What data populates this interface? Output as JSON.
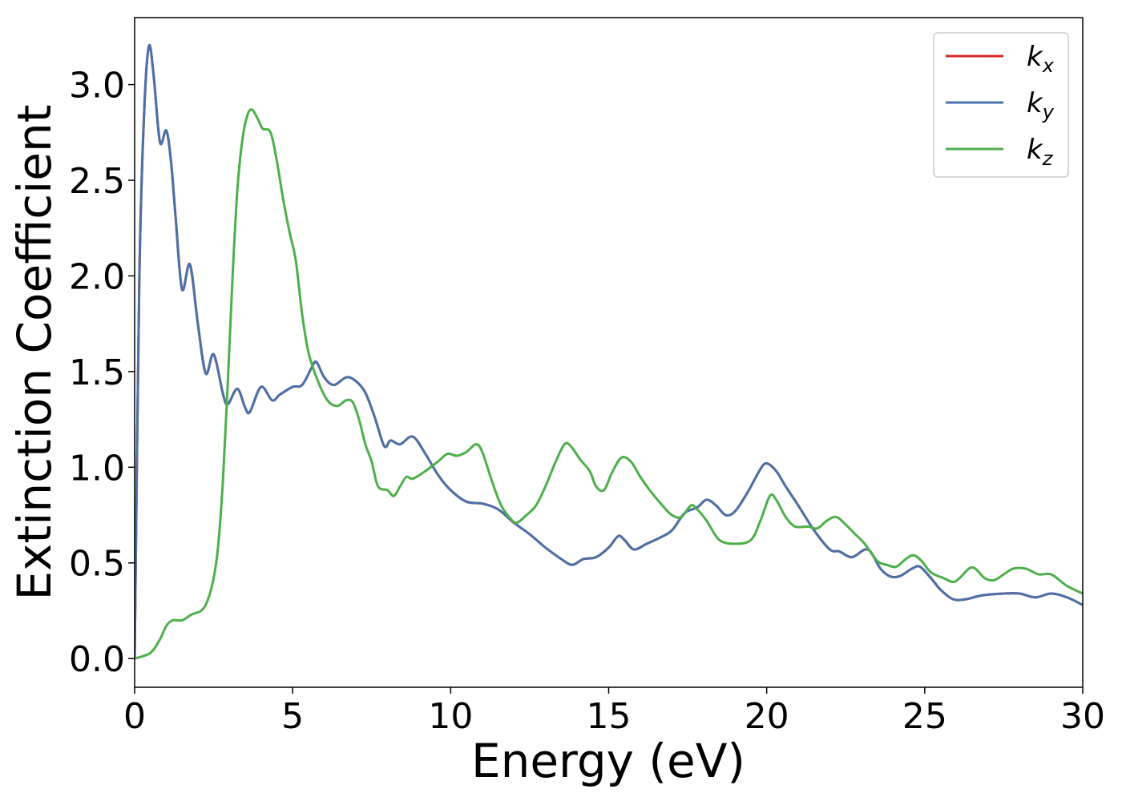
{
  "chart_data": {
    "type": "line",
    "xlabel": "Energy (eV)",
    "ylabel": "Extinction Coefficient",
    "xlim": [
      0,
      30
    ],
    "ylim": [
      -0.15,
      3.35
    ],
    "x_ticks": [
      "0",
      "5",
      "10",
      "15",
      "20",
      "25",
      "30"
    ],
    "y_ticks": [
      "0.0",
      "0.5",
      "1.0",
      "1.5",
      "2.0",
      "2.5",
      "3.0"
    ],
    "grid": false,
    "legend_position": "top-right",
    "series": [
      {
        "name": "k_x",
        "legend_main": "k",
        "legend_sub": "x",
        "color": "#d62728",
        "points": [
          [
            0,
            0
          ],
          [
            0.15,
            2.0
          ],
          [
            0.3,
            2.85
          ],
          [
            0.45,
            3.2
          ],
          [
            0.6,
            3.05
          ],
          [
            0.8,
            2.7
          ],
          [
            1.0,
            2.76
          ],
          [
            1.15,
            2.6
          ],
          [
            1.3,
            2.3
          ],
          [
            1.5,
            1.93
          ],
          [
            1.75,
            2.06
          ],
          [
            2.0,
            1.75
          ],
          [
            2.25,
            1.49
          ],
          [
            2.5,
            1.59
          ],
          [
            2.8,
            1.38
          ],
          [
            2.95,
            1.33
          ],
          [
            3.25,
            1.41
          ],
          [
            3.5,
            1.31
          ],
          [
            3.65,
            1.29
          ],
          [
            4.0,
            1.42
          ],
          [
            4.35,
            1.35
          ],
          [
            4.6,
            1.38
          ],
          [
            5.0,
            1.42
          ],
          [
            5.3,
            1.43
          ],
          [
            5.6,
            1.52
          ],
          [
            5.75,
            1.55
          ],
          [
            6.0,
            1.47
          ],
          [
            6.3,
            1.43
          ],
          [
            6.7,
            1.47
          ],
          [
            7.0,
            1.45
          ],
          [
            7.3,
            1.39
          ],
          [
            7.6,
            1.26
          ],
          [
            7.9,
            1.11
          ],
          [
            8.1,
            1.14
          ],
          [
            8.4,
            1.12
          ],
          [
            8.8,
            1.16
          ],
          [
            9.2,
            1.07
          ],
          [
            9.6,
            0.96
          ],
          [
            10.0,
            0.88
          ],
          [
            10.5,
            0.82
          ],
          [
            11.0,
            0.81
          ],
          [
            11.5,
            0.78
          ],
          [
            12.0,
            0.71
          ],
          [
            12.5,
            0.65
          ],
          [
            13.0,
            0.58
          ],
          [
            13.5,
            0.52
          ],
          [
            13.85,
            0.49
          ],
          [
            14.2,
            0.52
          ],
          [
            14.6,
            0.53
          ],
          [
            15.0,
            0.58
          ],
          [
            15.3,
            0.64
          ],
          [
            15.5,
            0.62
          ],
          [
            15.8,
            0.57
          ],
          [
            16.2,
            0.6
          ],
          [
            16.6,
            0.63
          ],
          [
            17.0,
            0.67
          ],
          [
            17.4,
            0.76
          ],
          [
            17.8,
            0.79
          ],
          [
            18.1,
            0.83
          ],
          [
            18.4,
            0.8
          ],
          [
            18.7,
            0.75
          ],
          [
            19.0,
            0.77
          ],
          [
            19.4,
            0.87
          ],
          [
            19.8,
            0.99
          ],
          [
            20.0,
            1.02
          ],
          [
            20.3,
            0.98
          ],
          [
            20.6,
            0.9
          ],
          [
            21.0,
            0.8
          ],
          [
            21.5,
            0.67
          ],
          [
            22.0,
            0.57
          ],
          [
            22.3,
            0.56
          ],
          [
            22.7,
            0.53
          ],
          [
            23.2,
            0.57
          ],
          [
            23.6,
            0.47
          ],
          [
            23.9,
            0.43
          ],
          [
            24.2,
            0.43
          ],
          [
            24.6,
            0.47
          ],
          [
            24.85,
            0.48
          ],
          [
            25.2,
            0.42
          ],
          [
            25.5,
            0.36
          ],
          [
            25.9,
            0.31
          ],
          [
            26.3,
            0.31
          ],
          [
            26.8,
            0.33
          ],
          [
            27.5,
            0.34
          ],
          [
            28.0,
            0.34
          ],
          [
            28.5,
            0.32
          ],
          [
            29.0,
            0.34
          ],
          [
            29.5,
            0.32
          ],
          [
            30.0,
            0.28
          ]
        ]
      },
      {
        "name": "k_y",
        "legend_main": "k",
        "legend_sub": "y",
        "color": "#4a72a8",
        "points": [
          [
            0,
            0
          ],
          [
            0.15,
            2.0
          ],
          [
            0.3,
            2.85
          ],
          [
            0.45,
            3.2
          ],
          [
            0.6,
            3.05
          ],
          [
            0.8,
            2.7
          ],
          [
            1.0,
            2.76
          ],
          [
            1.15,
            2.6
          ],
          [
            1.3,
            2.3
          ],
          [
            1.5,
            1.93
          ],
          [
            1.75,
            2.06
          ],
          [
            2.0,
            1.75
          ],
          [
            2.25,
            1.49
          ],
          [
            2.5,
            1.59
          ],
          [
            2.8,
            1.38
          ],
          [
            2.95,
            1.33
          ],
          [
            3.25,
            1.41
          ],
          [
            3.5,
            1.31
          ],
          [
            3.65,
            1.29
          ],
          [
            4.0,
            1.42
          ],
          [
            4.35,
            1.35
          ],
          [
            4.6,
            1.38
          ],
          [
            5.0,
            1.42
          ],
          [
            5.3,
            1.43
          ],
          [
            5.6,
            1.52
          ],
          [
            5.75,
            1.55
          ],
          [
            6.0,
            1.47
          ],
          [
            6.3,
            1.43
          ],
          [
            6.7,
            1.47
          ],
          [
            7.0,
            1.45
          ],
          [
            7.3,
            1.39
          ],
          [
            7.6,
            1.26
          ],
          [
            7.9,
            1.11
          ],
          [
            8.1,
            1.14
          ],
          [
            8.4,
            1.12
          ],
          [
            8.8,
            1.16
          ],
          [
            9.2,
            1.07
          ],
          [
            9.6,
            0.96
          ],
          [
            10.0,
            0.88
          ],
          [
            10.5,
            0.82
          ],
          [
            11.0,
            0.81
          ],
          [
            11.5,
            0.78
          ],
          [
            12.0,
            0.71
          ],
          [
            12.5,
            0.65
          ],
          [
            13.0,
            0.58
          ],
          [
            13.5,
            0.52
          ],
          [
            13.85,
            0.49
          ],
          [
            14.2,
            0.52
          ],
          [
            14.6,
            0.53
          ],
          [
            15.0,
            0.58
          ],
          [
            15.3,
            0.64
          ],
          [
            15.5,
            0.62
          ],
          [
            15.8,
            0.57
          ],
          [
            16.2,
            0.6
          ],
          [
            16.6,
            0.63
          ],
          [
            17.0,
            0.67
          ],
          [
            17.4,
            0.76
          ],
          [
            17.8,
            0.79
          ],
          [
            18.1,
            0.83
          ],
          [
            18.4,
            0.8
          ],
          [
            18.7,
            0.75
          ],
          [
            19.0,
            0.77
          ],
          [
            19.4,
            0.87
          ],
          [
            19.8,
            0.99
          ],
          [
            20.0,
            1.02
          ],
          [
            20.3,
            0.98
          ],
          [
            20.6,
            0.9
          ],
          [
            21.0,
            0.8
          ],
          [
            21.5,
            0.67
          ],
          [
            22.0,
            0.57
          ],
          [
            22.3,
            0.56
          ],
          [
            22.7,
            0.53
          ],
          [
            23.2,
            0.57
          ],
          [
            23.6,
            0.47
          ],
          [
            23.9,
            0.43
          ],
          [
            24.2,
            0.43
          ],
          [
            24.6,
            0.47
          ],
          [
            24.85,
            0.48
          ],
          [
            25.2,
            0.42
          ],
          [
            25.5,
            0.36
          ],
          [
            25.9,
            0.31
          ],
          [
            26.3,
            0.31
          ],
          [
            26.8,
            0.33
          ],
          [
            27.5,
            0.34
          ],
          [
            28.0,
            0.34
          ],
          [
            28.5,
            0.32
          ],
          [
            29.0,
            0.34
          ],
          [
            29.5,
            0.32
          ],
          [
            30.0,
            0.28
          ]
        ]
      },
      {
        "name": "k_z",
        "legend_main": "k",
        "legend_sub": "z",
        "color": "#4daf4a",
        "points": [
          [
            0,
            0
          ],
          [
            0.5,
            0.03
          ],
          [
            0.8,
            0.1
          ],
          [
            1.0,
            0.17
          ],
          [
            1.2,
            0.2
          ],
          [
            1.5,
            0.2
          ],
          [
            1.8,
            0.23
          ],
          [
            2.1,
            0.25
          ],
          [
            2.3,
            0.3
          ],
          [
            2.5,
            0.42
          ],
          [
            2.65,
            0.6
          ],
          [
            2.8,
            0.95
          ],
          [
            2.95,
            1.45
          ],
          [
            3.1,
            2.0
          ],
          [
            3.25,
            2.45
          ],
          [
            3.4,
            2.7
          ],
          [
            3.55,
            2.83
          ],
          [
            3.7,
            2.87
          ],
          [
            3.9,
            2.82
          ],
          [
            4.05,
            2.77
          ],
          [
            4.3,
            2.75
          ],
          [
            4.5,
            2.6
          ],
          [
            4.7,
            2.4
          ],
          [
            4.9,
            2.23
          ],
          [
            5.1,
            2.08
          ],
          [
            5.3,
            1.8
          ],
          [
            5.5,
            1.6
          ],
          [
            5.8,
            1.45
          ],
          [
            6.1,
            1.35
          ],
          [
            6.4,
            1.32
          ],
          [
            6.7,
            1.35
          ],
          [
            6.9,
            1.34
          ],
          [
            7.1,
            1.25
          ],
          [
            7.3,
            1.12
          ],
          [
            7.5,
            1.03
          ],
          [
            7.7,
            0.9
          ],
          [
            8.0,
            0.88
          ],
          [
            8.2,
            0.85
          ],
          [
            8.4,
            0.9
          ],
          [
            8.6,
            0.95
          ],
          [
            8.8,
            0.94
          ],
          [
            9.2,
            0.98
          ],
          [
            9.6,
            1.03
          ],
          [
            9.9,
            1.07
          ],
          [
            10.2,
            1.06
          ],
          [
            10.5,
            1.08
          ],
          [
            10.8,
            1.12
          ],
          [
            11.0,
            1.08
          ],
          [
            11.3,
            0.93
          ],
          [
            11.6,
            0.8
          ],
          [
            11.9,
            0.73
          ],
          [
            12.1,
            0.71
          ],
          [
            12.4,
            0.75
          ],
          [
            12.7,
            0.8
          ],
          [
            13.0,
            0.9
          ],
          [
            13.3,
            1.02
          ],
          [
            13.6,
            1.12
          ],
          [
            13.8,
            1.11
          ],
          [
            14.1,
            1.04
          ],
          [
            14.4,
            0.98
          ],
          [
            14.6,
            0.9
          ],
          [
            14.85,
            0.88
          ],
          [
            15.1,
            0.97
          ],
          [
            15.4,
            1.05
          ],
          [
            15.7,
            1.03
          ],
          [
            16.0,
            0.95
          ],
          [
            16.3,
            0.88
          ],
          [
            16.7,
            0.8
          ],
          [
            17.0,
            0.75
          ],
          [
            17.3,
            0.74
          ],
          [
            17.6,
            0.8
          ],
          [
            17.8,
            0.78
          ],
          [
            18.1,
            0.72
          ],
          [
            18.5,
            0.62
          ],
          [
            19.0,
            0.6
          ],
          [
            19.5,
            0.62
          ],
          [
            19.8,
            0.72
          ],
          [
            20.1,
            0.85
          ],
          [
            20.3,
            0.83
          ],
          [
            20.6,
            0.74
          ],
          [
            20.9,
            0.69
          ],
          [
            21.3,
            0.69
          ],
          [
            21.6,
            0.68
          ],
          [
            21.9,
            0.72
          ],
          [
            22.2,
            0.74
          ],
          [
            22.5,
            0.7
          ],
          [
            22.8,
            0.65
          ],
          [
            23.1,
            0.6
          ],
          [
            23.5,
            0.51
          ],
          [
            23.8,
            0.49
          ],
          [
            24.1,
            0.48
          ],
          [
            24.4,
            0.52
          ],
          [
            24.65,
            0.54
          ],
          [
            24.9,
            0.51
          ],
          [
            25.2,
            0.45
          ],
          [
            25.6,
            0.42
          ],
          [
            25.9,
            0.4
          ],
          [
            26.1,
            0.42
          ],
          [
            26.4,
            0.47
          ],
          [
            26.6,
            0.47
          ],
          [
            26.9,
            0.42
          ],
          [
            27.2,
            0.41
          ],
          [
            27.5,
            0.44
          ],
          [
            27.8,
            0.47
          ],
          [
            28.2,
            0.47
          ],
          [
            28.6,
            0.44
          ],
          [
            29.0,
            0.44
          ],
          [
            29.5,
            0.38
          ],
          [
            30.0,
            0.34
          ]
        ]
      }
    ]
  }
}
